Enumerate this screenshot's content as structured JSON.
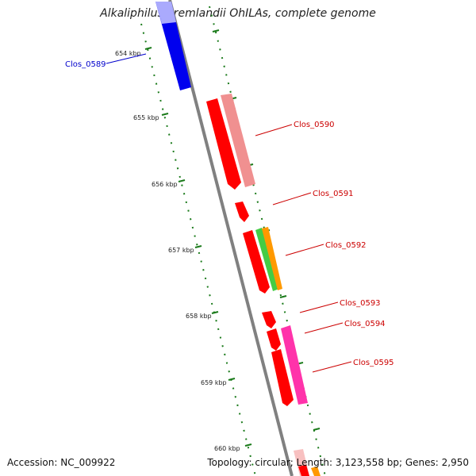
{
  "title": "Alkaliphilus oremlandii OhILAs, complete genome",
  "footer": {
    "accession": "Accession: NC_009922",
    "stats": "Topology: circular; Length: 3,123,558 bp; Genes: 2,950"
  },
  "colors": {
    "backbone": "#808080",
    "tick": "#1a7a1a",
    "label_red": "#cc0000",
    "label_blue": "#0000cc",
    "red_gene": "#ff0000",
    "pink_gene": "#f09090",
    "green_gene": "#44cc44",
    "orange_gene": "#ff9900",
    "magenta_gene": "#ff33aa",
    "blue_gene": "#0000ee"
  },
  "ticks": [
    {
      "kbp": 654,
      "label": "654 kbp"
    },
    {
      "kbp": 655,
      "label": "655 kbp"
    },
    {
      "kbp": 656,
      "label": "656 kbp"
    },
    {
      "kbp": 657,
      "label": "657 kbp"
    },
    {
      "kbp": 658,
      "label": "658 kbp"
    },
    {
      "kbp": 659,
      "label": "659 kbp"
    },
    {
      "kbp": 660,
      "label": "660 kbp"
    }
  ],
  "gene_labels": [
    {
      "text": "Clos_0589",
      "color": "blue"
    },
    {
      "text": "Clos_0590",
      "color": "red"
    },
    {
      "text": "Clos_0591",
      "color": "red"
    },
    {
      "text": "Clos_0592",
      "color": "red"
    },
    {
      "text": "Clos_0593",
      "color": "red"
    },
    {
      "text": "Clos_0594",
      "color": "red"
    },
    {
      "text": "Clos_0595",
      "color": "red"
    }
  ]
}
